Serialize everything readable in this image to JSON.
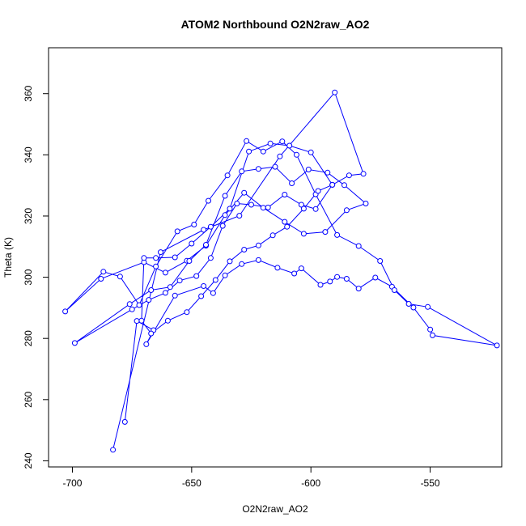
{
  "chart_data": {
    "type": "line",
    "title": "ATOM2 Northbound O2N2raw_AO2",
    "xlabel": "O2N2raw_AO2",
    "ylabel": "Theta (K)",
    "xlim": [
      -710,
      -520
    ],
    "ylim": [
      238,
      375
    ],
    "xticks": [
      -700,
      -650,
      -600,
      -550
    ],
    "yticks": [
      240,
      260,
      280,
      300,
      320,
      340,
      360
    ],
    "series_color": "#0000ff",
    "marker": "open-circle",
    "grid": false,
    "legend": "none",
    "series": [
      {
        "name": "O2N2raw_AO2",
        "x": [
          -678,
          -673,
          -666,
          -669,
          -657,
          -645,
          -641,
          -636,
          -629,
          -622,
          -614,
          -607,
          -604,
          -596,
          -592,
          -589,
          -585,
          -580,
          -573,
          -566,
          -557,
          -550,
          -549,
          -522,
          -551,
          -559,
          -565,
          -571,
          -580,
          -589,
          -598,
          -606,
          -612,
          -620,
          -627,
          -635,
          -643,
          -649,
          -656,
          -665,
          -672,
          -680,
          -687,
          -703,
          -688,
          -670,
          -661,
          -652,
          -644,
          -636,
          -628,
          -620,
          -611,
          -603,
          -594,
          -585,
          -577,
          -586,
          -593,
          -601,
          -608,
          -615,
          -622,
          -629,
          -636,
          -644,
          -651,
          -659,
          -667,
          -676,
          -699,
          -675,
          -668,
          -661,
          -655,
          -648,
          -642,
          -637,
          -631,
          -625,
          -618,
          -611,
          -604,
          -598,
          -591,
          -600,
          -609,
          -617,
          -626,
          -634,
          -642,
          -650,
          -657,
          -665,
          -670,
          -671,
          -667,
          -660,
          -652,
          -646,
          -640,
          -634,
          -628,
          -622,
          -616,
          -610,
          -603,
          -597,
          -591,
          -584,
          -578,
          -590,
          -613,
          -630,
          -645,
          -663,
          -683
        ],
        "y": [
          252.7,
          285.7,
          282.7,
          278.1,
          294.0,
          297.1,
          294.8,
          300.6,
          304.3,
          305.6,
          303.1,
          301.2,
          302.9,
          297.5,
          298.6,
          300.1,
          299.5,
          296.3,
          299.9,
          296.9,
          290.1,
          282.9,
          281.0,
          277.7,
          290.3,
          291.3,
          295.8,
          305.3,
          310.2,
          313.8,
          327.1,
          340.0,
          344.4,
          341.1,
          344.5,
          333.3,
          325.0,
          317.2,
          315.0,
          303.5,
          290.9,
          300.2,
          301.8,
          288.8,
          299.5,
          304.9,
          301.5,
          305.4,
          310.3,
          320.3,
          327.6,
          322.7,
          318.1,
          314.2,
          314.8,
          321.9,
          324.1,
          330.1,
          334.2,
          335.2,
          330.7,
          336.1,
          335.4,
          334.6,
          326.6,
          310.6,
          305.3,
          296.8,
          295.8,
          291.2,
          278.5,
          289.5,
          292.6,
          294.9,
          298.9,
          300.4,
          306.3,
          316.8,
          324.1,
          323.7,
          322.8,
          327.0,
          323.7,
          322.3,
          330.2,
          340.8,
          343.0,
          343.7,
          341.1,
          322.4,
          316.5,
          311.0,
          306.5,
          306.3,
          306.3,
          285.8,
          281.6,
          285.8,
          288.6,
          293.8,
          299.1,
          305.2,
          309.0,
          310.4,
          313.7,
          316.5,
          322.4,
          328.2,
          330.2,
          333.3,
          333.8,
          360.4,
          339.5,
          320.1,
          315.5,
          308.2,
          243.6
        ]
      }
    ]
  }
}
